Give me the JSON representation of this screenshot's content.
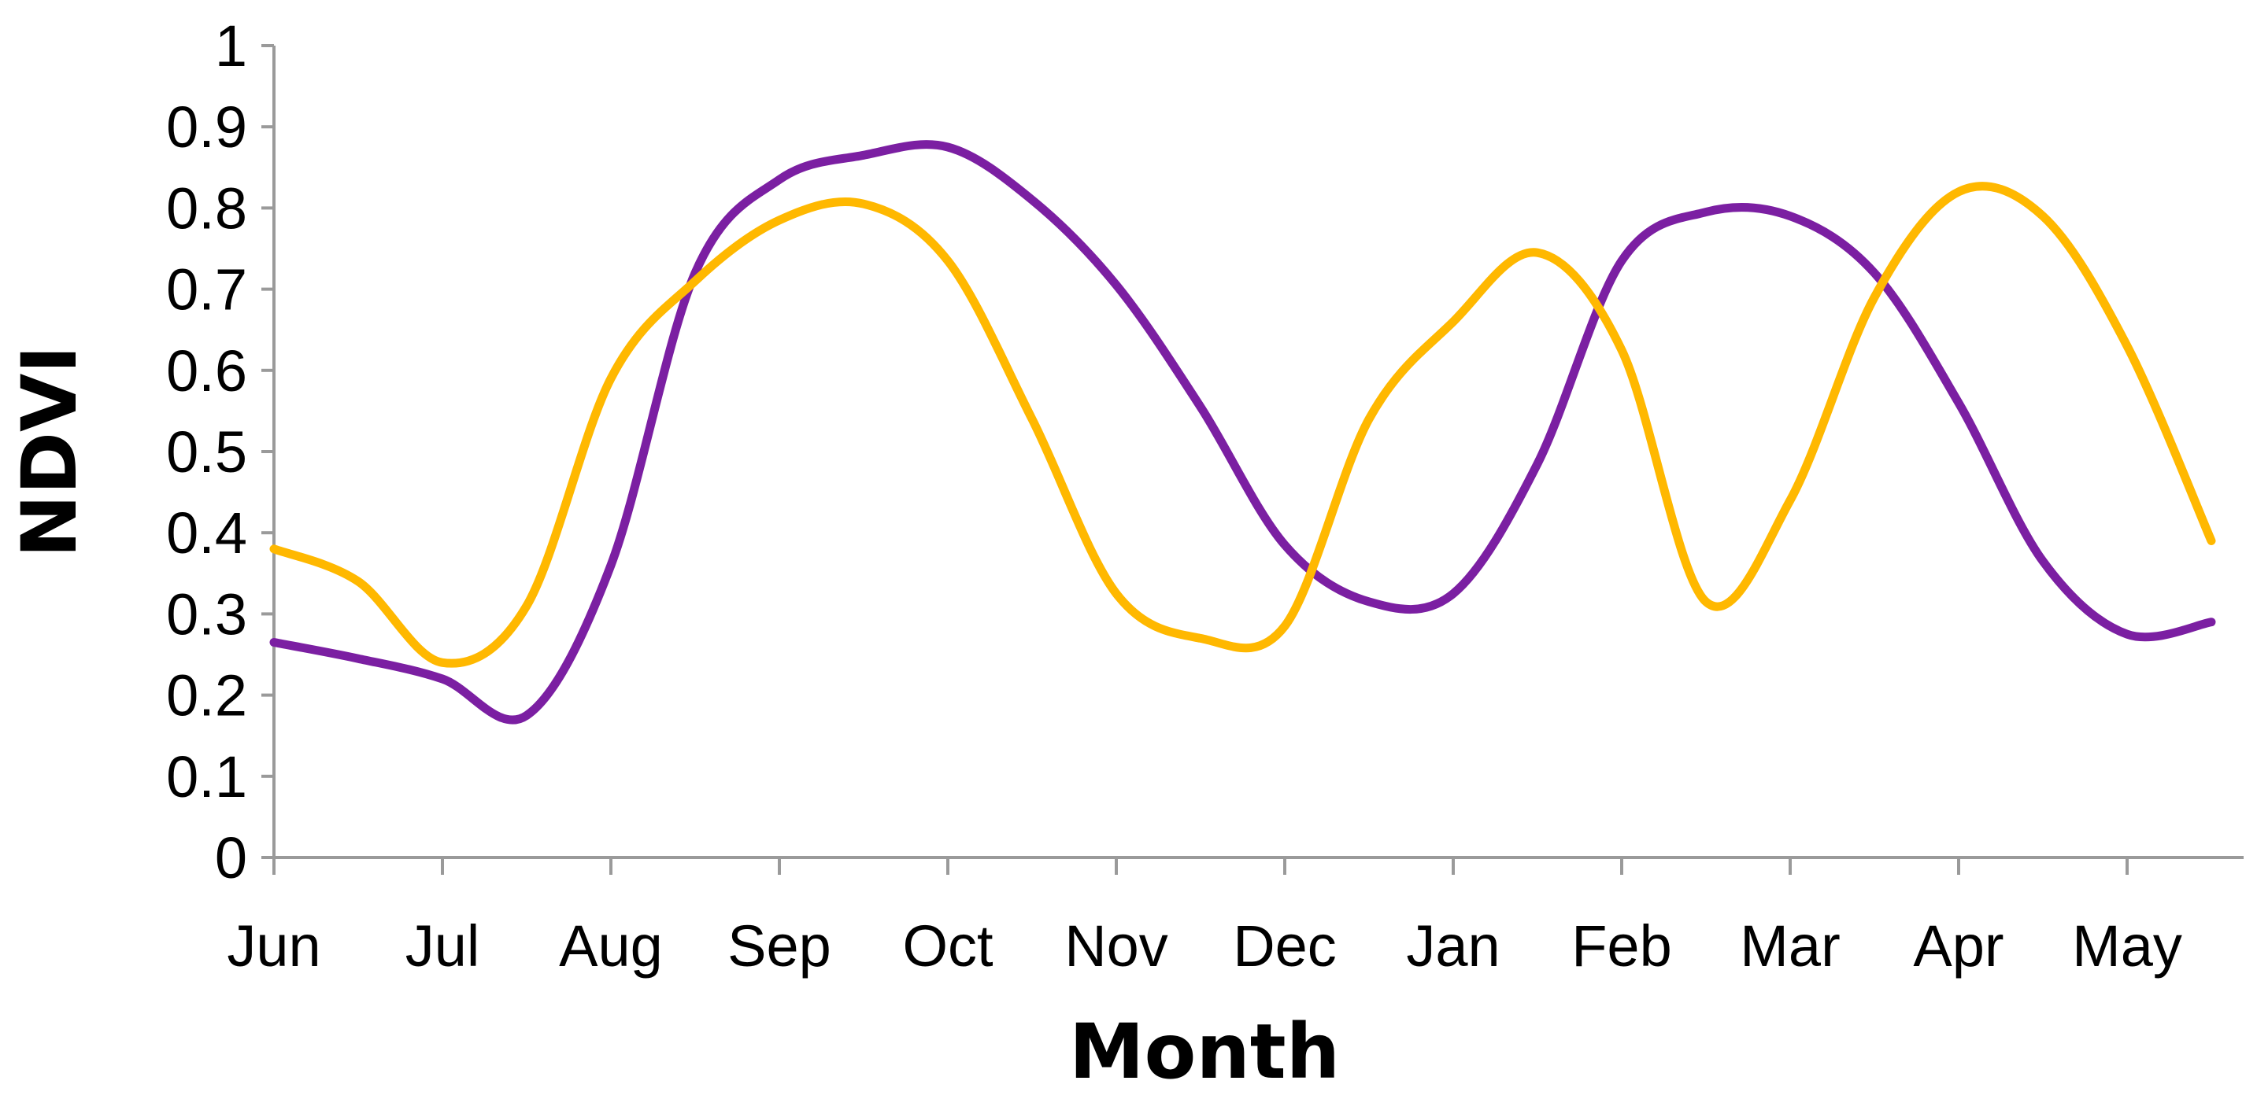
{
  "chart_data": {
    "type": "line",
    "title": "",
    "xlabel": "Month",
    "ylabel": "NDVI",
    "ylim": [
      0,
      1
    ],
    "y_ticks": [
      "0",
      "0.1",
      "0.2",
      "0.3",
      "0.4",
      "0.5",
      "0.6",
      "0.7",
      "0.8",
      "0.9",
      "1"
    ],
    "categories": [
      "Jun",
      "Jul",
      "Aug",
      "Sep",
      "Oct",
      "Nov",
      "Dec",
      "Jan",
      "Feb",
      "Mar",
      "Apr",
      "May"
    ],
    "grid": false,
    "legend": "none",
    "series": [
      {
        "color": "#7B1FA2",
        "x": [
          0,
          0.5,
          1,
          1.5,
          2,
          2.5,
          3,
          3.5,
          4,
          4.5,
          5,
          5.5,
          6,
          6.5,
          7,
          7.5,
          8,
          8.5,
          9,
          9.5,
          10,
          10.5,
          11,
          11.5
        ],
        "values": [
          0.265,
          0.245,
          0.22,
          0.175,
          0.36,
          0.72,
          0.835,
          0.865,
          0.875,
          0.81,
          0.705,
          0.555,
          0.385,
          0.315,
          0.325,
          0.485,
          0.735,
          0.795,
          0.79,
          0.72,
          0.56,
          0.365,
          0.275,
          0.29
        ]
      },
      {
        "color": "#FFB800",
        "x": [
          0,
          0.5,
          1,
          1.5,
          2,
          2.5,
          3,
          3.5,
          4,
          4.5,
          5,
          5.5,
          6,
          6.5,
          7,
          7.5,
          8,
          8.5,
          9,
          9.5,
          10,
          10.5,
          11,
          11.5
        ],
        "values": [
          0.38,
          0.34,
          0.24,
          0.31,
          0.59,
          0.71,
          0.785,
          0.805,
          0.735,
          0.54,
          0.325,
          0.27,
          0.285,
          0.54,
          0.66,
          0.745,
          0.625,
          0.315,
          0.44,
          0.69,
          0.82,
          0.79,
          0.63,
          0.39
        ]
      }
    ]
  }
}
